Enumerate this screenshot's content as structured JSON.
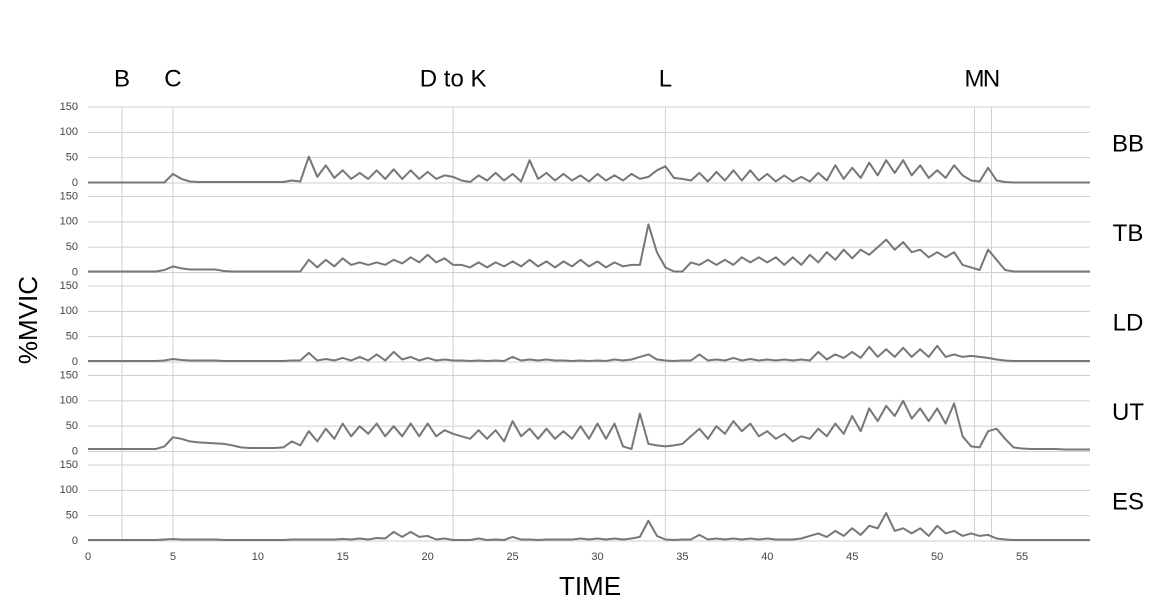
{
  "chart_data": {
    "type": "line",
    "xlabel": "TIME",
    "ylabel": "%MVIC",
    "xlim": [
      0,
      59
    ],
    "xticks": [
      0,
      5,
      10,
      15,
      20,
      25,
      30,
      35,
      40,
      45,
      50,
      55
    ],
    "ylim": [
      0,
      150
    ],
    "yticks": [
      0,
      50,
      100,
      150
    ],
    "grid": true,
    "annotations": [
      {
        "text": "B",
        "x": 2
      },
      {
        "text": "C",
        "x": 5
      },
      {
        "text": "D to K",
        "x": 21.5
      },
      {
        "text": "L",
        "x": 34
      },
      {
        "text": "M",
        "x": 52.2
      },
      {
        "text": "N",
        "x": 53.2
      }
    ],
    "x": [
      0,
      0.5,
      1,
      1.5,
      2,
      2.5,
      3,
      3.5,
      4,
      4.5,
      5,
      5.5,
      6,
      6.5,
      7,
      7.5,
      8,
      8.5,
      9,
      9.5,
      10,
      10.5,
      11,
      11.5,
      12,
      12.5,
      13,
      13.5,
      14,
      14.5,
      15,
      15.5,
      16,
      16.5,
      17,
      17.5,
      18,
      18.5,
      19,
      19.5,
      20,
      20.5,
      21,
      21.5,
      22,
      22.5,
      23,
      23.5,
      24,
      24.5,
      25,
      25.5,
      26,
      26.5,
      27,
      27.5,
      28,
      28.5,
      29,
      29.5,
      30,
      30.5,
      31,
      31.5,
      32,
      32.5,
      33,
      33.5,
      34,
      34.5,
      35,
      35.5,
      36,
      36.5,
      37,
      37.5,
      38,
      38.5,
      39,
      39.5,
      40,
      40.5,
      41,
      41.5,
      42,
      42.5,
      43,
      43.5,
      44,
      44.5,
      45,
      45.5,
      46,
      46.5,
      47,
      47.5,
      48,
      48.5,
      49,
      49.5,
      50,
      50.5,
      51,
      51.5,
      52,
      52.5,
      53,
      53.5,
      54,
      54.5,
      55,
      55.5,
      56,
      56.5,
      57,
      57.5,
      58,
      58.5,
      59
    ],
    "series": [
      {
        "name": "BB",
        "color": "#777777",
        "values": [
          1,
          1,
          1,
          1,
          1,
          1,
          1,
          1,
          1,
          1,
          18,
          8,
          3,
          2,
          2,
          2,
          2,
          2,
          2,
          2,
          2,
          2,
          2,
          2,
          5,
          3,
          52,
          12,
          35,
          10,
          25,
          8,
          20,
          8,
          25,
          8,
          27,
          8,
          25,
          8,
          22,
          8,
          15,
          12,
          5,
          2,
          15,
          5,
          20,
          5,
          18,
          3,
          45,
          8,
          20,
          5,
          18,
          5,
          15,
          3,
          18,
          5,
          15,
          5,
          18,
          8,
          12,
          25,
          33,
          10,
          8,
          5,
          20,
          3,
          22,
          5,
          25,
          5,
          25,
          5,
          18,
          3,
          15,
          3,
          12,
          3,
          20,
          5,
          35,
          8,
          30,
          10,
          40,
          15,
          45,
          20,
          45,
          15,
          35,
          10,
          25,
          10,
          35,
          15,
          5,
          3,
          30,
          5,
          2,
          1,
          1,
          1,
          1,
          1,
          1,
          1,
          1,
          1,
          1
        ]
      },
      {
        "name": "TB",
        "color": "#777777",
        "values": [
          2,
          2,
          2,
          2,
          2,
          2,
          2,
          2,
          2,
          5,
          12,
          8,
          6,
          6,
          6,
          6,
          3,
          2,
          2,
          2,
          2,
          2,
          2,
          2,
          2,
          2,
          25,
          10,
          25,
          12,
          28,
          15,
          20,
          15,
          20,
          15,
          25,
          18,
          30,
          20,
          35,
          20,
          28,
          15,
          15,
          10,
          20,
          10,
          20,
          12,
          22,
          12,
          25,
          12,
          22,
          10,
          22,
          12,
          25,
          12,
          22,
          10,
          20,
          12,
          15,
          15,
          95,
          40,
          10,
          2,
          2,
          20,
          15,
          25,
          15,
          25,
          15,
          30,
          20,
          30,
          20,
          30,
          15,
          30,
          15,
          35,
          20,
          40,
          25,
          45,
          28,
          45,
          35,
          50,
          65,
          45,
          60,
          40,
          45,
          30,
          40,
          30,
          40,
          15,
          10,
          5,
          45,
          25,
          5,
          2,
          2,
          2,
          2,
          2,
          2,
          2,
          2,
          2,
          2
        ]
      },
      {
        "name": "LD",
        "color": "#777777",
        "values": [
          2,
          2,
          2,
          2,
          2,
          2,
          2,
          2,
          2,
          3,
          6,
          4,
          3,
          3,
          3,
          3,
          2,
          2,
          2,
          2,
          2,
          2,
          2,
          2,
          3,
          3,
          18,
          3,
          6,
          3,
          8,
          3,
          10,
          3,
          15,
          3,
          20,
          5,
          10,
          3,
          8,
          3,
          5,
          3,
          3,
          2,
          3,
          2,
          3,
          2,
          10,
          3,
          5,
          3,
          5,
          3,
          3,
          2,
          3,
          2,
          3,
          2,
          5,
          3,
          5,
          10,
          15,
          5,
          3,
          2,
          3,
          3,
          15,
          3,
          5,
          3,
          8,
          3,
          6,
          3,
          5,
          3,
          5,
          3,
          5,
          3,
          20,
          5,
          15,
          8,
          20,
          8,
          30,
          10,
          25,
          10,
          28,
          10,
          25,
          10,
          32,
          10,
          15,
          10,
          12,
          10,
          8,
          5,
          3,
          2,
          2,
          2,
          2,
          2,
          2,
          2,
          2,
          2,
          2
        ]
      },
      {
        "name": "UT",
        "color": "#777777",
        "values": [
          5,
          5,
          5,
          5,
          5,
          5,
          5,
          5,
          5,
          10,
          28,
          25,
          20,
          18,
          17,
          16,
          15,
          12,
          8,
          7,
          7,
          7,
          7,
          8,
          20,
          12,
          40,
          20,
          45,
          25,
          55,
          30,
          50,
          35,
          55,
          30,
          50,
          30,
          55,
          30,
          55,
          30,
          42,
          35,
          30,
          25,
          42,
          25,
          42,
          20,
          60,
          30,
          45,
          25,
          45,
          25,
          40,
          25,
          50,
          25,
          55,
          25,
          55,
          10,
          5,
          75,
          15,
          12,
          10,
          12,
          15,
          30,
          45,
          25,
          50,
          35,
          60,
          40,
          55,
          30,
          40,
          25,
          35,
          20,
          30,
          25,
          45,
          30,
          55,
          35,
          70,
          40,
          85,
          60,
          90,
          70,
          100,
          65,
          85,
          60,
          85,
          55,
          95,
          30,
          10,
          8,
          40,
          45,
          25,
          8,
          6,
          5,
          5,
          5,
          5,
          4,
          4,
          4,
          4
        ]
      },
      {
        "name": "ES",
        "color": "#777777",
        "values": [
          2,
          2,
          2,
          2,
          2,
          2,
          2,
          2,
          2,
          3,
          4,
          3,
          3,
          3,
          3,
          3,
          2,
          2,
          2,
          2,
          2,
          2,
          2,
          2,
          3,
          3,
          3,
          3,
          3,
          3,
          4,
          3,
          5,
          3,
          6,
          5,
          18,
          8,
          18,
          8,
          10,
          3,
          5,
          2,
          2,
          2,
          5,
          2,
          3,
          2,
          8,
          3,
          3,
          2,
          3,
          3,
          3,
          3,
          5,
          3,
          5,
          3,
          5,
          3,
          5,
          8,
          40,
          10,
          3,
          2,
          3,
          3,
          12,
          3,
          5,
          3,
          5,
          3,
          5,
          3,
          5,
          3,
          3,
          3,
          5,
          10,
          15,
          8,
          20,
          10,
          25,
          12,
          30,
          25,
          55,
          20,
          25,
          15,
          25,
          10,
          30,
          15,
          20,
          10,
          15,
          10,
          12,
          5,
          3,
          2,
          2,
          2,
          2,
          2,
          2,
          2,
          2,
          2,
          2
        ]
      }
    ]
  }
}
